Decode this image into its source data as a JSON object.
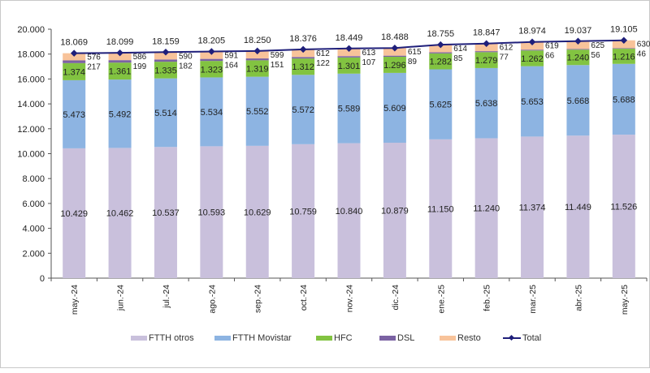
{
  "chart_data": {
    "type": "bar",
    "stacked": true,
    "title": "",
    "xlabel": "",
    "ylabel": "",
    "ylim": [
      0,
      20000
    ],
    "yticks": [
      0,
      2000,
      4000,
      6000,
      8000,
      10000,
      12000,
      14000,
      16000,
      18000,
      20000
    ],
    "ytick_labels": [
      "0",
      "2.000",
      "4.000",
      "6.000",
      "8.000",
      "10.000",
      "12.000",
      "14.000",
      "16.000",
      "18.000",
      "20.000"
    ],
    "grid": false,
    "legend_position": "bottom",
    "categories": [
      "may.-24",
      "jun.-24",
      "jul.-24",
      "ago.-24",
      "sep.-24",
      "oct.-24",
      "nov.-24",
      "dic.-24",
      "ene.-25",
      "feb.-25",
      "mar.-25",
      "abr.-25",
      "may.-25"
    ],
    "series": [
      {
        "name": "FTTH otros",
        "color": "#c9c0dc",
        "values": [
          10429,
          10462,
          10537,
          10593,
          10629,
          10759,
          10840,
          10879,
          11150,
          11240,
          11374,
          11449,
          11526
        ],
        "labels": [
          "10.429",
          "10.462",
          "10.537",
          "10.593",
          "10.629",
          "10.759",
          "10.840",
          "10.879",
          "11.150",
          "11.240",
          "11.374",
          "11.449",
          "11.526"
        ]
      },
      {
        "name": "FTTH Movistar",
        "color": "#8db4e2",
        "values": [
          5473,
          5492,
          5514,
          5534,
          5552,
          5572,
          5589,
          5609,
          5625,
          5638,
          5653,
          5668,
          5688
        ],
        "labels": [
          "5.473",
          "5.492",
          "5.514",
          "5.534",
          "5.552",
          "5.572",
          "5.589",
          "5.609",
          "5.625",
          "5.638",
          "5.653",
          "5.668",
          "5.688"
        ]
      },
      {
        "name": "HFC",
        "color": "#82c341",
        "values": [
          1374,
          1361,
          1335,
          1323,
          1319,
          1312,
          1301,
          1296,
          1282,
          1279,
          1262,
          1240,
          1216
        ],
        "labels": [
          "1.374",
          "1.361",
          "1.335",
          "1.323",
          "1.319",
          "1.312",
          "1.301",
          "1.296",
          "1.282",
          "1.279",
          "1.262",
          "1.240",
          "1.216"
        ]
      },
      {
        "name": "DSL",
        "color": "#7b62a3",
        "values": [
          217,
          199,
          182,
          164,
          151,
          122,
          107,
          89,
          85,
          77,
          66,
          56,
          46
        ],
        "labels": [
          "217",
          "199",
          "182",
          "164",
          "151",
          "122",
          "107",
          "89",
          "85",
          "77",
          "66",
          "56",
          "46"
        ]
      },
      {
        "name": "Resto",
        "color": "#f8c39a",
        "values": [
          576,
          586,
          590,
          591,
          599,
          612,
          613,
          615,
          614,
          612,
          619,
          625,
          630
        ],
        "labels": [
          "576",
          "586",
          "590",
          "591",
          "599",
          "612",
          "613",
          "615",
          "614",
          "612",
          "619",
          "625",
          "630"
        ]
      }
    ],
    "line_series": {
      "name": "Total",
      "type": "line",
      "color": "#1f1f7a",
      "values": [
        18069,
        18099,
        18159,
        18205,
        18250,
        18376,
        18449,
        18488,
        18755,
        18847,
        18974,
        19037,
        19105
      ],
      "labels": [
        "18.069",
        "18.099",
        "18.159",
        "18.205",
        "18.250",
        "18.376",
        "18.449",
        "18.488",
        "18.755",
        "18.847",
        "18.974",
        "19.037",
        "19.105"
      ]
    }
  },
  "legend": {
    "items": [
      {
        "label": "FTTH otros",
        "color": "#c9c0dc",
        "kind": "box"
      },
      {
        "label": "FTTH Movistar",
        "color": "#8db4e2",
        "kind": "box"
      },
      {
        "label": "HFC",
        "color": "#82c341",
        "kind": "box"
      },
      {
        "label": "DSL",
        "color": "#7b62a3",
        "kind": "box"
      },
      {
        "label": "Resto",
        "color": "#f8c39a",
        "kind": "box"
      },
      {
        "label": "Total",
        "color": "#1f1f7a",
        "kind": "line"
      }
    ]
  }
}
